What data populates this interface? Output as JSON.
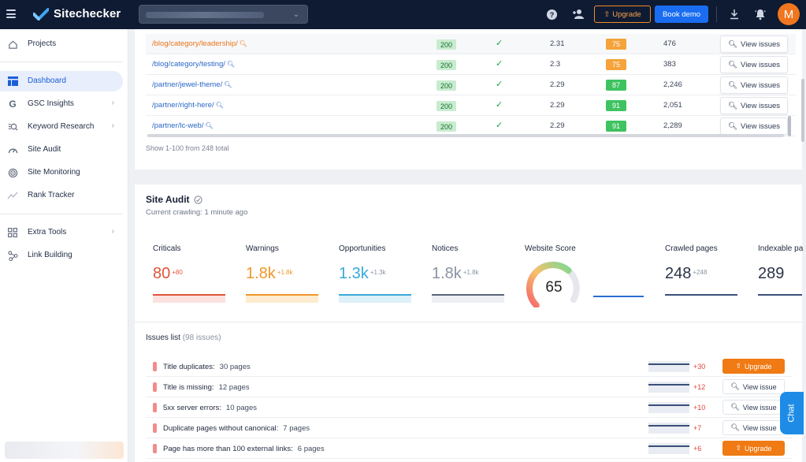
{
  "header": {
    "brand": "Sitechecker",
    "upgrade_label": "Upgrade",
    "demo_label": "Book demo",
    "avatar_initial": "M"
  },
  "sidebar": {
    "items": [
      {
        "label": "Projects",
        "icon": "home-icon"
      },
      {
        "label": "Dashboard",
        "icon": "dashboard-icon",
        "active": true
      },
      {
        "label": "GSC Insights",
        "icon": "google-icon",
        "arrow": true
      },
      {
        "label": "Keyword Research",
        "icon": "keyword-icon",
        "arrow": true
      },
      {
        "label": "Site Audit",
        "icon": "gauge-icon"
      },
      {
        "label": "Site Monitoring",
        "icon": "radar-icon"
      },
      {
        "label": "Rank Tracker",
        "icon": "trend-icon"
      },
      {
        "label": "Extra Tools",
        "icon": "grid-icon",
        "arrow": true
      },
      {
        "label": "Link Building",
        "icon": "link-icon"
      }
    ]
  },
  "pages_table": {
    "rows": [
      {
        "url": "/blog/category/leadership/",
        "status": "200",
        "load": "2.31",
        "score": "75",
        "score_color": "#f5a33b",
        "words": "476"
      },
      {
        "url": "/blog/category/testing/",
        "status": "200",
        "load": "2.3",
        "score": "75",
        "score_color": "#f5a33b",
        "words": "383"
      },
      {
        "url": "/partner/jewel-theme/",
        "status": "200",
        "load": "2.29",
        "score": "87",
        "score_color": "#3fc361",
        "words": "2,246"
      },
      {
        "url": "/partner/right-here/",
        "status": "200",
        "load": "2.29",
        "score": "91",
        "score_color": "#3fc361",
        "words": "2,051"
      },
      {
        "url": "/partner/lc-web/",
        "status": "200",
        "load": "2.29",
        "score": "91",
        "score_color": "#3fc361",
        "words": "2,289"
      }
    ],
    "view_label": "View issues",
    "showing": "Show 1-100 from 248 total"
  },
  "site_audit": {
    "title": "Site Audit",
    "subtitle": "Current crawling: 1 minute ago",
    "metrics": [
      {
        "label": "Criticals",
        "value": "80",
        "delta": "+80",
        "color": "#e0533a",
        "bar_color": "#e0533a",
        "fill": "#fbe2df"
      },
      {
        "label": "Warnings",
        "value": "1.8k",
        "delta": "+1.8k",
        "color": "#f0962a",
        "bar_color": "#f0962a",
        "fill": "#fdeccf"
      },
      {
        "label": "Opportunities",
        "value": "1.3k",
        "delta": "+1.3k",
        "color": "#3aa8d8",
        "bar_color": "#3aa8d8",
        "fill": "#ddf1fa"
      },
      {
        "label": "Notices",
        "value": "1.8k",
        "delta": "+1.8k",
        "color": "#8a93a3",
        "bar_color": "#5a6478",
        "fill": "#edeff3"
      }
    ],
    "website_score": {
      "label": "Website Score",
      "value": "65",
      "level": 0.65
    },
    "crawled": {
      "label": "Crawled pages",
      "value": "248",
      "delta": "+248"
    },
    "indexable": {
      "label": "Indexable pa",
      "value": "289"
    }
  },
  "issues": {
    "title": "Issues list",
    "count": "(98 issues)",
    "rows": [
      {
        "name": "Title duplicates:",
        "pages": "30 pages",
        "delta": "+30",
        "action": "upgrade"
      },
      {
        "name": "Title is missing:",
        "pages": "12 pages",
        "delta": "+12",
        "action": "view"
      },
      {
        "name": "5xx server errors:",
        "pages": "10 pages",
        "delta": "+10",
        "action": "view"
      },
      {
        "name": "Duplicate pages without canonical:",
        "pages": "7 pages",
        "delta": "+7",
        "action": "view"
      },
      {
        "name": "Page has more than 100 external links:",
        "pages": "6 pages",
        "delta": "+6",
        "action": "upgrade"
      }
    ],
    "upgrade_label": "Upgrade",
    "view_label": "View issue"
  },
  "chat_label": "Chat"
}
